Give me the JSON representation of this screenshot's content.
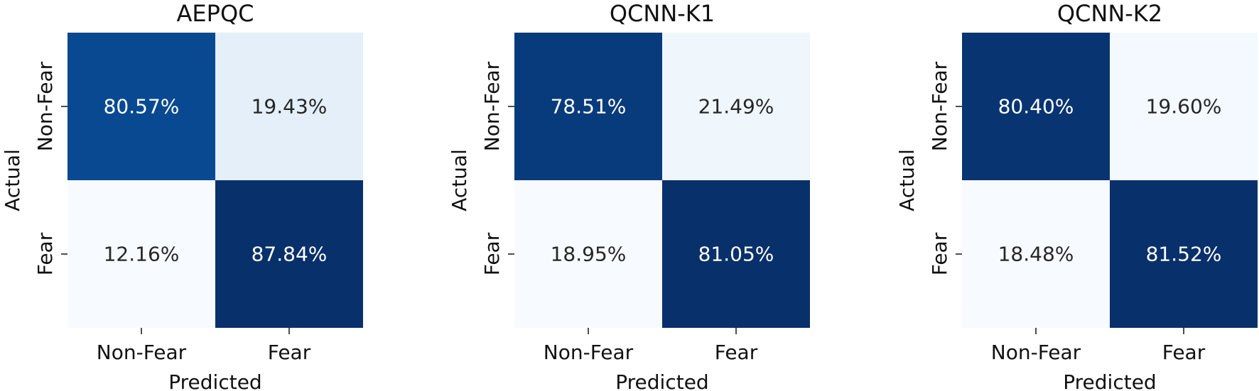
{
  "chart_data": [
    {
      "type": "heatmap",
      "title": "AEPQC",
      "xlabel": "Predicted",
      "ylabel": "Actual",
      "x_categories": [
        "Non-Fear",
        "Fear"
      ],
      "y_categories": [
        "Non-Fear",
        "Fear"
      ],
      "values": [
        [
          80.57,
          19.43
        ],
        [
          12.16,
          87.84
        ]
      ],
      "value_labels": [
        [
          "80.57%",
          "19.43%"
        ],
        [
          "12.16%",
          "87.84%"
        ]
      ],
      "colorscale": "Blues",
      "colorbar": false
    },
    {
      "type": "heatmap",
      "title": "QCNN-K1",
      "xlabel": "Predicted",
      "ylabel": "Actual",
      "x_categories": [
        "Non-Fear",
        "Fear"
      ],
      "y_categories": [
        "Non-Fear",
        "Fear"
      ],
      "values": [
        [
          78.51,
          21.49
        ],
        [
          18.95,
          81.05
        ]
      ],
      "value_labels": [
        [
          "78.51%",
          "21.49%"
        ],
        [
          "18.95%",
          "81.05%"
        ]
      ],
      "colorscale": "Blues",
      "colorbar": false
    },
    {
      "type": "heatmap",
      "title": "QCNN-K2",
      "xlabel": "Predicted",
      "ylabel": "Actual",
      "x_categories": [
        "Non-Fear",
        "Fear"
      ],
      "y_categories": [
        "Non-Fear",
        "Fear"
      ],
      "values": [
        [
          80.4,
          19.6
        ],
        [
          18.48,
          81.52
        ]
      ],
      "value_labels": [
        [
          "80.40%",
          "19.60%"
        ],
        [
          "18.48%",
          "81.52%"
        ]
      ],
      "colorscale": "Blues",
      "colorbar": false
    }
  ]
}
